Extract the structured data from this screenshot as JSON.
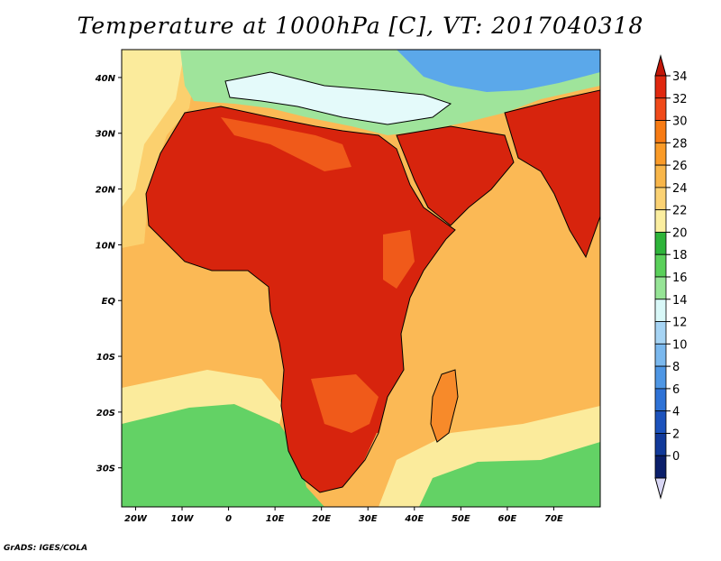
{
  "title": "Temperature at 1000hPa [C], VT: 2017040318",
  "credit": "GrADS: IGES/COLA",
  "map": {
    "lon_range": [
      -23,
      80
    ],
    "lat_range": [
      -37,
      45
    ],
    "lat_ticks": [
      {
        "value": 40,
        "label": "40N"
      },
      {
        "value": 30,
        "label": "30N"
      },
      {
        "value": 20,
        "label": "20N"
      },
      {
        "value": 10,
        "label": "10N"
      },
      {
        "value": 0,
        "label": "EQ"
      },
      {
        "value": -10,
        "label": "10S"
      },
      {
        "value": -20,
        "label": "20S"
      },
      {
        "value": -30,
        "label": "30S"
      }
    ],
    "lon_ticks": [
      {
        "value": -20,
        "label": "20W"
      },
      {
        "value": -10,
        "label": "10W"
      },
      {
        "value": 0,
        "label": "0"
      },
      {
        "value": 10,
        "label": "10E"
      },
      {
        "value": 20,
        "label": "20E"
      },
      {
        "value": 30,
        "label": "30E"
      },
      {
        "value": 40,
        "label": "40E"
      },
      {
        "value": 50,
        "label": "50E"
      },
      {
        "value": 60,
        "label": "60E"
      },
      {
        "value": 70,
        "label": "70E"
      }
    ]
  },
  "colorbar": {
    "levels": [
      {
        "label": "34",
        "color": "#e0280f"
      },
      {
        "label": "32",
        "color": "#f04a1a"
      },
      {
        "label": "30",
        "color": "#f77b14"
      },
      {
        "label": "28",
        "color": "#fa9b28"
      },
      {
        "label": "26",
        "color": "#f8b64a"
      },
      {
        "label": "24",
        "color": "#fbd274"
      },
      {
        "label": "22",
        "color": "#fbeea0"
      },
      {
        "label": "20",
        "color": "#2eb43a"
      },
      {
        "label": "18",
        "color": "#5ad05a"
      },
      {
        "label": "16",
        "color": "#96e496"
      },
      {
        "label": "14",
        "color": "#d9f8f8"
      },
      {
        "label": "12",
        "color": "#a6d4f4"
      },
      {
        "label": "10",
        "color": "#7ab8ee"
      },
      {
        "label": "8",
        "color": "#4e96e4"
      },
      {
        "label": "6",
        "color": "#2e72d6"
      },
      {
        "label": "4",
        "color": "#1c52bc"
      },
      {
        "label": "2",
        "color": "#123a9a"
      },
      {
        "label": "0",
        "color": "#0b1f6b"
      }
    ],
    "top_arrow_color": "#c21608",
    "bottom_arrow_color": "#d8d6f4"
  },
  "fill_colors": {
    "ocean_warm": "#fbb955",
    "ocean_mid": "#fbd06e",
    "ocean_cool": "#fbeb9c",
    "ocean_cold": "#63d265",
    "land_hot": "#d7240d",
    "land_warm": "#f05a1a",
    "land_mild": "#f78a2a",
    "med": "#e4fafa",
    "europe": "#9fe49b",
    "europe_cold": "#5ba8ea",
    "coast": "#000000"
  }
}
